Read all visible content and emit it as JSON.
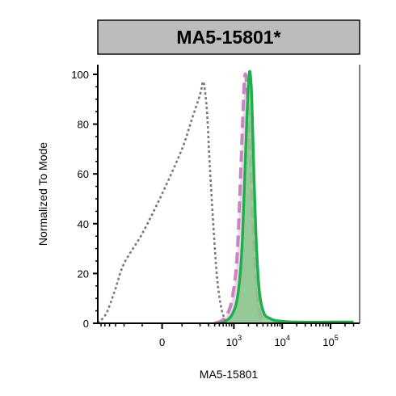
{
  "chart_data": {
    "type": "area",
    "title": "MA5-15801*",
    "xlabel": "MA5-15801",
    "ylabel": "Normalized To Mode",
    "ylim": [
      0,
      100
    ],
    "y_ticks": [
      "0",
      "20",
      "40",
      "60",
      "80",
      "100"
    ],
    "x_ticks": [
      {
        "base": "0",
        "exp": ""
      },
      {
        "base": "10",
        "exp": "3"
      },
      {
        "base": "10",
        "exp": "4"
      },
      {
        "base": "10",
        "exp": "5"
      }
    ],
    "x_scale": "biexponential",
    "grid": false,
    "series": [
      {
        "style": "dotted-gray",
        "color": "#7a7a7a",
        "x": [
          -700,
          -500,
          -400,
          -300,
          -200,
          -100,
          0,
          100,
          150,
          200,
          230,
          250,
          280,
          320,
          380,
          450,
          550,
          700
        ],
        "y": [
          0,
          3,
          7,
          14,
          24,
          36,
          52,
          70,
          82,
          92,
          97,
          94,
          84,
          62,
          38,
          18,
          6,
          0
        ]
      },
      {
        "style": "dashed-pink-filled",
        "color": "#c985c1",
        "fill": "#efcfe9",
        "x": [
          400,
          550,
          700,
          900,
          1150,
          1350,
          1500,
          1600,
          1700,
          1850,
          2000,
          2300,
          2700,
          3300,
          4000
        ],
        "y": [
          0,
          1,
          3,
          9,
          25,
          55,
          78,
          92,
          100,
          96,
          84,
          56,
          26,
          6,
          0
        ]
      },
      {
        "style": "solid-green-filled",
        "color": "#1fae4b",
        "fill": "#86c78a",
        "x": [
          500,
          700,
          950,
          1200,
          1450,
          1650,
          1850,
          2000,
          2150,
          2350,
          2600,
          2950,
          3400,
          4200,
          5500,
          8000,
          20000,
          100000,
          300000
        ],
        "y": [
          0,
          1,
          4,
          11,
          28,
          55,
          82,
          96,
          101,
          90,
          60,
          30,
          12,
          4,
          2,
          1,
          0.5,
          0.5,
          0.5
        ]
      }
    ]
  }
}
